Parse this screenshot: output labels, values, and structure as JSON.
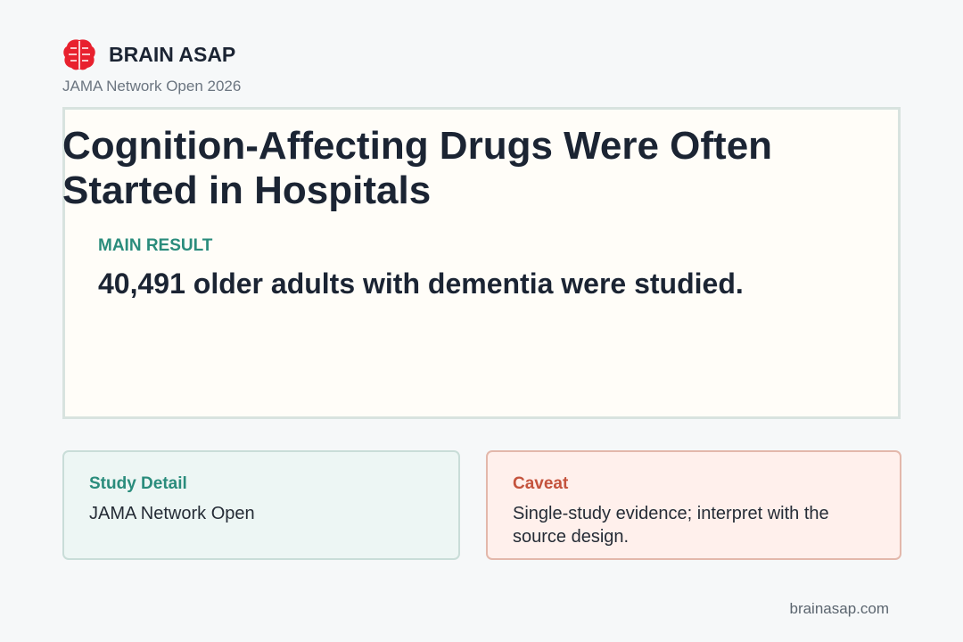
{
  "header": {
    "brand": "BRAIN ASAP",
    "subtitle": "JAMA Network Open 2026"
  },
  "card": {
    "title": "Cognition-Affecting Drugs Were Often Started in Hospitals",
    "label": "MAIN RESULT",
    "result": "40,491 older adults with dementia were studied."
  },
  "detail": {
    "title": "Study Detail",
    "text": "JAMA Network Open"
  },
  "caveat": {
    "title": "Caveat",
    "text": "Single-study evidence; interpret with the source design."
  },
  "footer": {
    "url": "brainasap.com"
  }
}
